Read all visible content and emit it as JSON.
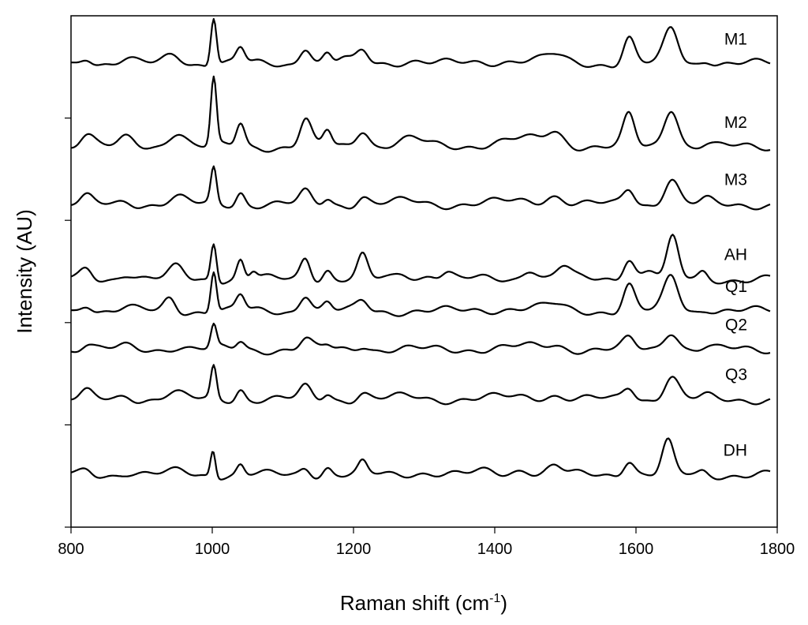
{
  "chart_data": {
    "type": "line",
    "title": "",
    "xlabel": "Raman shift (cm",
    "xlabel_sup": "-1",
    "xlabel_end": ")",
    "ylabel": "Intensity (AU)",
    "xlim": [
      800,
      1800
    ],
    "ylim": [
      0,
      8
    ],
    "xticks": [
      800,
      1000,
      1200,
      1400,
      1600,
      1800
    ],
    "yticks": [
      0,
      1.6,
      3.2,
      4.8,
      6.4
    ],
    "grid": false,
    "legend": "labels at right end of each trace",
    "series": [
      {
        "name": "M1",
        "offset": 7.25,
        "peaks": [
          [
            822,
            0.12,
            8
          ],
          [
            878,
            0.06,
            10
          ],
          [
            945,
            0.15,
            12
          ],
          [
            1002,
            0.75,
            4
          ],
          [
            1040,
            0.24,
            6
          ],
          [
            1132,
            0.28,
            8
          ],
          [
            1163,
            0.15,
            6
          ],
          [
            1185,
            0.07,
            8
          ],
          [
            1213,
            0.2,
            8
          ],
          [
            1280,
            0.05,
            20
          ],
          [
            1440,
            0.06,
            40
          ],
          [
            1485,
            0.1,
            12
          ],
          [
            1590,
            0.4,
            8
          ],
          [
            1650,
            0.55,
            10
          ],
          [
            1700,
            0.08,
            8
          ]
        ]
      },
      {
        "name": "M2",
        "offset": 5.95,
        "peaks": [
          [
            822,
            0.22,
            10
          ],
          [
            878,
            0.12,
            10
          ],
          [
            950,
            0.25,
            12
          ],
          [
            1002,
            1.05,
            4
          ],
          [
            1040,
            0.37,
            6
          ],
          [
            1132,
            0.42,
            8
          ],
          [
            1163,
            0.25,
            6
          ],
          [
            1213,
            0.28,
            9
          ],
          [
            1280,
            0.12,
            20
          ],
          [
            1440,
            0.12,
            40
          ],
          [
            1485,
            0.18,
            12
          ],
          [
            1590,
            0.48,
            8
          ],
          [
            1650,
            0.62,
            10
          ],
          [
            1700,
            0.05,
            8
          ]
        ]
      },
      {
        "name": "M3",
        "offset": 5.05,
        "peaks": [
          [
            822,
            0.1,
            8
          ],
          [
            878,
            0.05,
            10
          ],
          [
            950,
            0.1,
            12
          ],
          [
            1002,
            0.55,
            4
          ],
          [
            1040,
            0.2,
            6
          ],
          [
            1132,
            0.18,
            8
          ],
          [
            1163,
            0.1,
            6
          ],
          [
            1213,
            0.12,
            8
          ],
          [
            1280,
            0.05,
            20
          ],
          [
            1440,
            0.05,
            40
          ],
          [
            1485,
            0.12,
            12
          ],
          [
            1590,
            0.25,
            8
          ],
          [
            1650,
            0.4,
            10
          ],
          [
            1700,
            0.06,
            8
          ]
        ]
      },
      {
        "name": "AH",
        "offset": 3.88,
        "peaks": [
          [
            822,
            0.15,
            8
          ],
          [
            878,
            0.1,
            10
          ],
          [
            950,
            0.18,
            10
          ],
          [
            1002,
            0.6,
            4
          ],
          [
            1040,
            0.3,
            5
          ],
          [
            1058,
            0.12,
            5
          ],
          [
            1132,
            0.35,
            7
          ],
          [
            1163,
            0.15,
            6
          ],
          [
            1213,
            0.35,
            7
          ],
          [
            1270,
            0.1,
            10
          ],
          [
            1310,
            0.08,
            10
          ],
          [
            1332,
            0.1,
            8
          ],
          [
            1450,
            0.18,
            10
          ],
          [
            1497,
            0.2,
            10
          ],
          [
            1590,
            0.35,
            8
          ],
          [
            1620,
            0.15,
            10
          ],
          [
            1652,
            0.62,
            8
          ],
          [
            1695,
            0.1,
            6
          ]
        ]
      },
      {
        "name": "Q1",
        "offset": 3.38,
        "peaks": [
          [
            822,
            0.13,
            8
          ],
          [
            878,
            0.05,
            10
          ],
          [
            940,
            0.2,
            8
          ],
          [
            1002,
            0.65,
            4
          ],
          [
            1040,
            0.24,
            6
          ],
          [
            1132,
            0.28,
            8
          ],
          [
            1163,
            0.12,
            6
          ],
          [
            1213,
            0.16,
            8
          ],
          [
            1440,
            0.05,
            40
          ],
          [
            1485,
            0.07,
            12
          ],
          [
            1590,
            0.4,
            8
          ],
          [
            1650,
            0.55,
            10
          ],
          [
            1700,
            0.05,
            8
          ]
        ]
      },
      {
        "name": "Q2",
        "offset": 2.78,
        "peaks": [
          [
            822,
            0.08,
            8
          ],
          [
            878,
            0.04,
            10
          ],
          [
            950,
            0.05,
            12
          ],
          [
            1002,
            0.35,
            4
          ],
          [
            1040,
            0.13,
            6
          ],
          [
            1132,
            0.15,
            8
          ],
          [
            1163,
            0.06,
            6
          ],
          [
            1213,
            0.08,
            8
          ],
          [
            1440,
            0.04,
            40
          ],
          [
            1485,
            0.05,
            12
          ],
          [
            1590,
            0.15,
            8
          ],
          [
            1650,
            0.3,
            10
          ],
          [
            1700,
            0.04,
            8
          ]
        ]
      },
      {
        "name": "Q3",
        "offset": 2.0,
        "peaks": [
          [
            822,
            0.1,
            8
          ],
          [
            878,
            0.06,
            10
          ],
          [
            945,
            0.1,
            12
          ],
          [
            1002,
            0.5,
            4
          ],
          [
            1040,
            0.17,
            6
          ],
          [
            1132,
            0.18,
            8
          ],
          [
            1163,
            0.1,
            6
          ],
          [
            1213,
            0.1,
            8
          ],
          [
            1280,
            0.04,
            20
          ],
          [
            1440,
            0.04,
            40
          ],
          [
            1485,
            0.05,
            12
          ],
          [
            1590,
            0.2,
            8
          ],
          [
            1650,
            0.36,
            10
          ],
          [
            1700,
            0.04,
            8
          ]
        ]
      },
      {
        "name": "DH",
        "offset": 0.82,
        "peaks": [
          [
            822,
            0.07,
            8
          ],
          [
            878,
            0.04,
            10
          ],
          [
            955,
            0.06,
            12
          ],
          [
            1001,
            0.42,
            3.5
          ],
          [
            1040,
            0.15,
            5
          ],
          [
            1132,
            0.12,
            7
          ],
          [
            1163,
            0.12,
            6
          ],
          [
            1213,
            0.17,
            6
          ],
          [
            1300,
            0.04,
            20
          ],
          [
            1390,
            0.05,
            15
          ],
          [
            1440,
            0.1,
            12
          ],
          [
            1485,
            0.14,
            10
          ],
          [
            1590,
            0.25,
            8
          ],
          [
            1645,
            0.5,
            8
          ],
          [
            1695,
            0.05,
            6
          ]
        ]
      }
    ]
  }
}
